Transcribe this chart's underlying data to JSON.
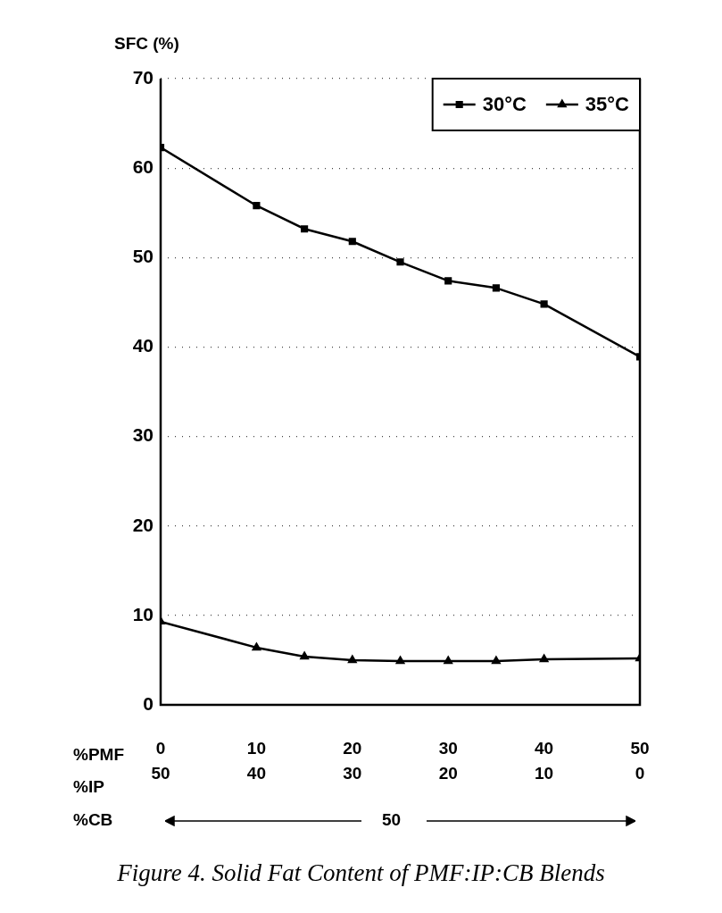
{
  "chart_data": {
    "type": "line",
    "title": "Figure 4. Solid Fat Content of PMF:IP:CB Blends",
    "ylabel": "SFC (%)",
    "xlabel": "%PMF",
    "x2label": "%IP",
    "x": [
      0,
      10,
      15,
      20,
      25,
      30,
      35,
      40,
      50
    ],
    "series": [
      {
        "name": "30°C",
        "color": "#000000",
        "marker": "square",
        "values": [
          62.3,
          55.8,
          53.2,
          51.8,
          49.5,
          47.4,
          46.6,
          44.8,
          38.9
        ]
      },
      {
        "name": "35°C",
        "color": "#000000",
        "marker": "triangle",
        "values": [
          9.3,
          6.4,
          5.4,
          5.0,
          4.9,
          4.9,
          4.9,
          5.1,
          5.2
        ]
      }
    ],
    "xlim": [
      0,
      50
    ],
    "xticks": [
      0,
      10,
      20,
      30,
      40,
      50
    ],
    "x2lim": [
      50,
      0
    ],
    "x2ticks": [
      50,
      40,
      30,
      20,
      10,
      0
    ],
    "ylim": [
      0,
      70
    ],
    "yticks": [
      0,
      10,
      20,
      30,
      40,
      50,
      60,
      70
    ],
    "annotations": [
      "%CB",
      "50"
    ],
    "grid": "y",
    "legend": "top right",
    "line_style": "solid"
  }
}
